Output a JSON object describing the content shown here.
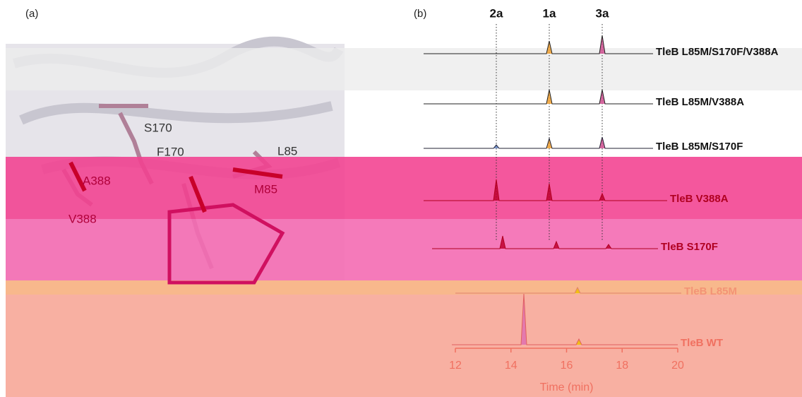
{
  "panel_a": {
    "label": "(a)",
    "residues": [
      "S170",
      "F170",
      "L85",
      "A388",
      "M85",
      "V388"
    ]
  },
  "panel_b": {
    "label": "(b)",
    "peaks": [
      "2a",
      "1a",
      "3a"
    ],
    "traces": [
      "TleB L85M/S170F/V388A",
      "TleB L85M/V388A",
      "TleB L85M/S170F",
      "TleB V388A",
      "TleB S170F",
      "TleB L85M",
      "TleB WT"
    ],
    "xaxis": {
      "title": "Time (min)",
      "xlim": [
        12,
        20
      ],
      "xticks": [
        12,
        14,
        16,
        18,
        20
      ]
    }
  }
}
